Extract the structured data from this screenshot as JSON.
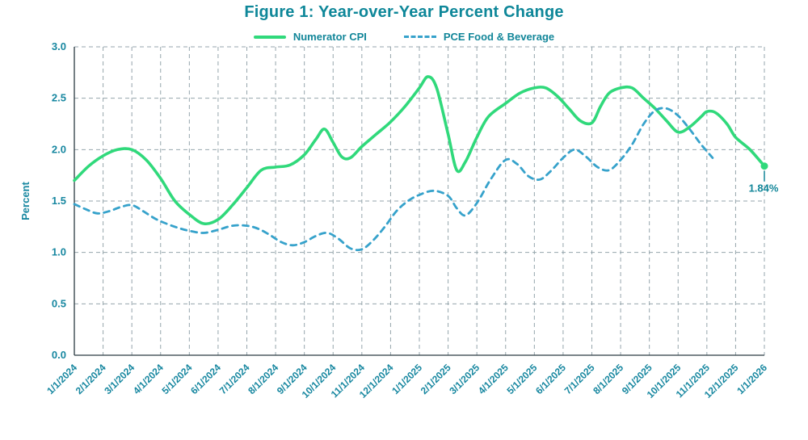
{
  "title": "Figure 1: Year-over-Year Percent Change",
  "colors": {
    "title_text": "#0E8799",
    "tick_text": "#1787A0",
    "annotation_text": "#128699",
    "grid": "#95A5AC",
    "axis": "#2B3A42",
    "numerator_cpi_green": "#30D97B",
    "pce_dashed_blue": "#36A2CB"
  },
  "chart_data": {
    "type": "line",
    "title": "Figure 1: Year-over-Year Percent Change",
    "xlabel": "",
    "ylabel": "Percent",
    "ylim": [
      0,
      3
    ],
    "ytick_step": 0.5,
    "grid": "dashed-both",
    "legend_position": "top-center",
    "y_tick_labels": [
      "0.0",
      "0.5",
      "1.0",
      "1.5",
      "2.0",
      "2.5",
      "3.0"
    ],
    "x_tick_labels": [
      "1/1/2024",
      "2/1/2024",
      "3/1/2024",
      "4/1/2024",
      "5/1/2024",
      "6/1/2024",
      "7/1/2024",
      "8/1/2024",
      "9/1/2024",
      "10/1/2024",
      "11/1/2024",
      "12/1/2024",
      "1/1/2025",
      "2/1/2025",
      "3/1/2025",
      "4/1/2025",
      "5/1/2025",
      "6/1/2025",
      "7/1/2025",
      "8/1/2025",
      "9/1/2025",
      "10/1/2025",
      "11/1/2025",
      "12/1/2025",
      "1/1/2026"
    ],
    "series": [
      {
        "name": "Numerator CPI",
        "style": "solid",
        "color": "#30D97B",
        "points": [
          [
            0,
            1.7
          ],
          [
            0.5,
            1.84
          ],
          [
            1,
            1.94
          ],
          [
            1.5,
            2.0
          ],
          [
            2,
            2.0
          ],
          [
            2.5,
            1.9
          ],
          [
            3,
            1.72
          ],
          [
            3.5,
            1.5
          ],
          [
            4,
            1.37
          ],
          [
            4.5,
            1.28
          ],
          [
            5,
            1.32
          ],
          [
            5.5,
            1.46
          ],
          [
            6,
            1.63
          ],
          [
            6.5,
            1.8
          ],
          [
            7,
            1.83
          ],
          [
            7.5,
            1.85
          ],
          [
            8,
            1.95
          ],
          [
            8.4,
            2.1
          ],
          [
            8.7,
            2.2
          ],
          [
            9,
            2.07
          ],
          [
            9.3,
            1.93
          ],
          [
            9.6,
            1.92
          ],
          [
            10,
            2.03
          ],
          [
            10.5,
            2.15
          ],
          [
            11,
            2.27
          ],
          [
            11.5,
            2.42
          ],
          [
            12,
            2.6
          ],
          [
            12.3,
            2.71
          ],
          [
            12.6,
            2.6
          ],
          [
            13,
            2.15
          ],
          [
            13.3,
            1.8
          ],
          [
            13.6,
            1.88
          ],
          [
            14,
            2.12
          ],
          [
            14.4,
            2.32
          ],
          [
            15,
            2.45
          ],
          [
            15.5,
            2.55
          ],
          [
            16,
            2.6
          ],
          [
            16.4,
            2.6
          ],
          [
            16.8,
            2.52
          ],
          [
            17.2,
            2.4
          ],
          [
            17.6,
            2.28
          ],
          [
            18,
            2.26
          ],
          [
            18.3,
            2.42
          ],
          [
            18.6,
            2.55
          ],
          [
            19,
            2.6
          ],
          [
            19.4,
            2.6
          ],
          [
            19.8,
            2.5
          ],
          [
            20.2,
            2.4
          ],
          [
            20.6,
            2.28
          ],
          [
            21,
            2.17
          ],
          [
            21.4,
            2.22
          ],
          [
            21.8,
            2.32
          ],
          [
            22,
            2.37
          ],
          [
            22.3,
            2.36
          ],
          [
            22.7,
            2.25
          ],
          [
            23,
            2.12
          ],
          [
            23.5,
            2.0
          ],
          [
            24,
            1.84
          ]
        ]
      },
      {
        "name": "PCE Food & Beverage",
        "style": "dashed",
        "color": "#36A2CB",
        "points": [
          [
            0,
            1.47
          ],
          [
            0.4,
            1.42
          ],
          [
            0.8,
            1.38
          ],
          [
            1.2,
            1.4
          ],
          [
            1.6,
            1.44
          ],
          [
            2,
            1.46
          ],
          [
            2.4,
            1.4
          ],
          [
            2.8,
            1.33
          ],
          [
            3.2,
            1.28
          ],
          [
            3.6,
            1.24
          ],
          [
            4,
            1.21
          ],
          [
            4.5,
            1.19
          ],
          [
            5,
            1.22
          ],
          [
            5.5,
            1.26
          ],
          [
            6,
            1.26
          ],
          [
            6.4,
            1.23
          ],
          [
            6.8,
            1.17
          ],
          [
            7.2,
            1.1
          ],
          [
            7.6,
            1.07
          ],
          [
            8,
            1.1
          ],
          [
            8.4,
            1.16
          ],
          [
            8.8,
            1.19
          ],
          [
            9.2,
            1.13
          ],
          [
            9.6,
            1.04
          ],
          [
            10,
            1.03
          ],
          [
            10.4,
            1.12
          ],
          [
            10.8,
            1.25
          ],
          [
            11.2,
            1.4
          ],
          [
            11.6,
            1.5
          ],
          [
            12,
            1.56
          ],
          [
            12.5,
            1.6
          ],
          [
            13,
            1.55
          ],
          [
            13.3,
            1.43
          ],
          [
            13.6,
            1.36
          ],
          [
            14,
            1.48
          ],
          [
            14.5,
            1.72
          ],
          [
            15,
            1.9
          ],
          [
            15.4,
            1.86
          ],
          [
            15.8,
            1.74
          ],
          [
            16.2,
            1.71
          ],
          [
            16.6,
            1.8
          ],
          [
            17,
            1.92
          ],
          [
            17.4,
            2.0
          ],
          [
            17.8,
            1.93
          ],
          [
            18.2,
            1.83
          ],
          [
            18.6,
            1.8
          ],
          [
            19,
            1.9
          ],
          [
            19.4,
            2.05
          ],
          [
            19.8,
            2.25
          ],
          [
            20.2,
            2.38
          ],
          [
            20.6,
            2.4
          ],
          [
            21,
            2.33
          ],
          [
            21.4,
            2.2
          ],
          [
            21.8,
            2.05
          ],
          [
            22.2,
            1.92
          ]
        ]
      }
    ],
    "annotation": {
      "text": "1.84%",
      "x": 24,
      "y": 1.84
    }
  }
}
